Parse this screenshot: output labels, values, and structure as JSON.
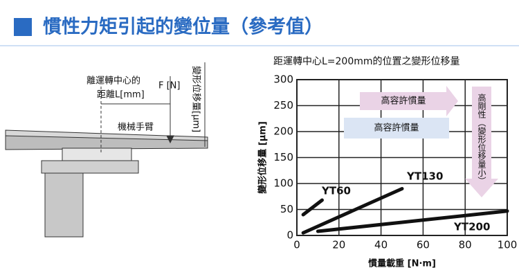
{
  "header": {
    "title": "慣性力矩引起的變位量（參考值）"
  },
  "diagram": {
    "labels": [
      "離運轉中心的",
      "距離L[mm]",
      "F [N]",
      "變形位移量[μm]",
      "機械手臂"
    ]
  },
  "chart_data": {
    "type": "line",
    "title": "距運轉中心L=200mm的位置之變形位移量",
    "x_label": "慣量載重 [N·m]",
    "y_label": "變形位移量 [μm]",
    "xlim": [
      0,
      100
    ],
    "xticks": [
      0,
      20,
      40,
      60,
      80,
      100
    ],
    "ylim": [
      0,
      300
    ],
    "yticks": [
      0,
      50,
      100,
      150,
      200,
      250,
      300
    ],
    "grid": true,
    "series": [
      {
        "name": "YT60",
        "color": "#111111",
        "x": [
          3,
          12
        ],
        "values": [
          40,
          68
        ]
      },
      {
        "name": "YT130",
        "color": "#111111",
        "x": [
          3,
          50
        ],
        "values": [
          5,
          90
        ]
      },
      {
        "name": "YT200",
        "color": "#111111",
        "x": [
          10,
          100
        ],
        "values": [
          8,
          47
        ]
      }
    ],
    "annotations": [
      "高容許慣量",
      "高容許慣量",
      "高剛性（變形位移量小）"
    ]
  }
}
